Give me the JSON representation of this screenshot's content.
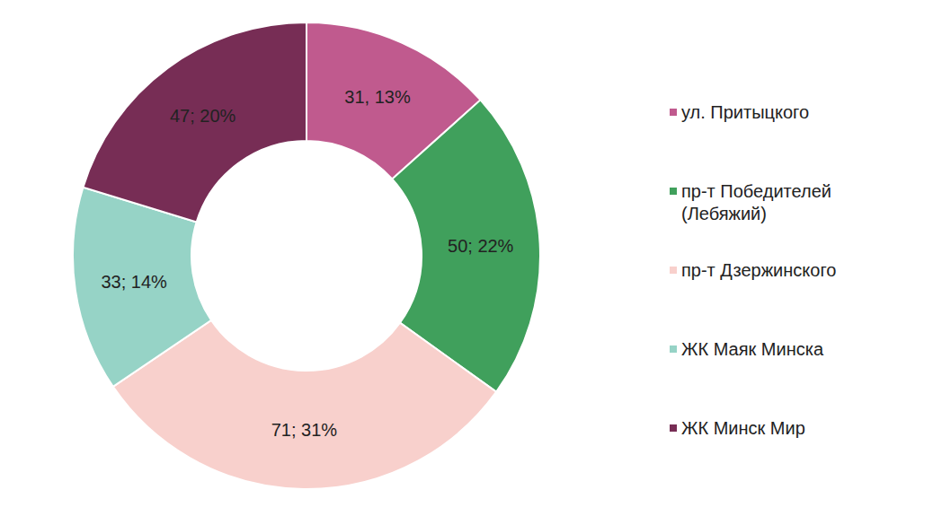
{
  "chart_data": {
    "type": "pie",
    "categories": [
      "ул. Притыцкого",
      "пр-т Победителей (Лебяжий)",
      "пр-т Дзержинского",
      "ЖК Маяк Минска",
      "ЖК Минск Мир"
    ],
    "values": [
      31,
      50,
      71,
      33,
      47
    ],
    "value_labels": [
      "31, 13%",
      "50; 22%",
      "71; 31%",
      "33; 14%",
      "47; 20%"
    ],
    "colors": [
      "#c05a8e",
      "#40a05c",
      "#f8d0cc",
      "#96d3c6",
      "#772d55"
    ],
    "data_labels": true,
    "legend": "right"
  }
}
